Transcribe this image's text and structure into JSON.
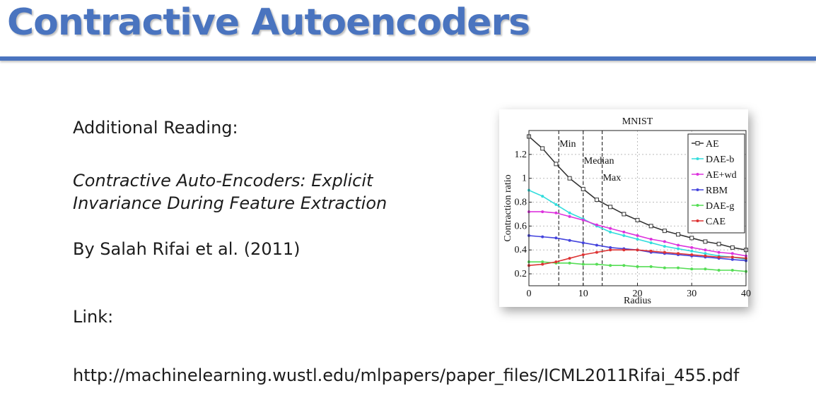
{
  "slide": {
    "title": "Contractive Autoencoders",
    "additional_reading_label": "Additional Reading:",
    "paper_title_line1": "Contractive Auto-Encoders: Explicit",
    "paper_title_line2": "Invariance During Feature Extraction",
    "authors": "By Salah Rifai et al. (2011)",
    "link_label": "Link:",
    "link_url": "http://machinelearning.wustl.edu/mlpapers/paper_files/ICML2011Rifai_455.pdf"
  },
  "chart_data": {
    "type": "line",
    "title": "MNIST",
    "xlabel": "Radius",
    "ylabel": "Contraction ratio",
    "xlim": [
      0,
      40
    ],
    "ylim": [
      0.1,
      1.4
    ],
    "xticks": [
      0,
      10,
      20,
      30,
      40
    ],
    "yticks": [
      0.2,
      0.4,
      0.6,
      0.8,
      1,
      1.2
    ],
    "grid": true,
    "legend_position": "top-right",
    "vlines": [
      {
        "x": 5.5,
        "label": "Min"
      },
      {
        "x": 10,
        "label": "Median"
      },
      {
        "x": 13.5,
        "label": "Max"
      }
    ],
    "x": [
      0,
      2.5,
      5,
      7.5,
      10,
      12.5,
      15,
      17.5,
      20,
      22.5,
      25,
      27.5,
      30,
      32.5,
      35,
      37.5,
      40
    ],
    "series": [
      {
        "name": "AE",
        "color": "#333333",
        "marker": "square",
        "values": [
          1.35,
          1.25,
          1.12,
          1.0,
          0.91,
          0.82,
          0.76,
          0.7,
          0.65,
          0.6,
          0.56,
          0.53,
          0.5,
          0.47,
          0.45,
          0.42,
          0.4
        ]
      },
      {
        "name": "DAE-b",
        "color": "#33dddd",
        "marker": "dot",
        "values": [
          0.9,
          0.85,
          0.78,
          0.71,
          0.66,
          0.6,
          0.55,
          0.52,
          0.49,
          0.46,
          0.43,
          0.41,
          0.39,
          0.37,
          0.35,
          0.34,
          0.32
        ]
      },
      {
        "name": "AE+wd",
        "color": "#dd33dd",
        "marker": "dot",
        "values": [
          0.72,
          0.72,
          0.71,
          0.68,
          0.65,
          0.61,
          0.58,
          0.55,
          0.52,
          0.49,
          0.47,
          0.44,
          0.42,
          0.4,
          0.38,
          0.37,
          0.35
        ]
      },
      {
        "name": "RBM",
        "color": "#4444dd",
        "marker": "dot",
        "values": [
          0.52,
          0.51,
          0.5,
          0.48,
          0.46,
          0.44,
          0.42,
          0.41,
          0.4,
          0.38,
          0.37,
          0.36,
          0.35,
          0.34,
          0.33,
          0.32,
          0.31
        ]
      },
      {
        "name": "DAE-g",
        "color": "#55dd55",
        "marker": "dot",
        "values": [
          0.3,
          0.3,
          0.29,
          0.29,
          0.28,
          0.28,
          0.27,
          0.27,
          0.26,
          0.26,
          0.25,
          0.25,
          0.24,
          0.24,
          0.23,
          0.23,
          0.22
        ]
      },
      {
        "name": "CAE",
        "color": "#dd3333",
        "marker": "dot",
        "values": [
          0.27,
          0.28,
          0.3,
          0.33,
          0.36,
          0.38,
          0.4,
          0.4,
          0.4,
          0.39,
          0.38,
          0.37,
          0.36,
          0.35,
          0.34,
          0.34,
          0.33
        ]
      }
    ]
  }
}
